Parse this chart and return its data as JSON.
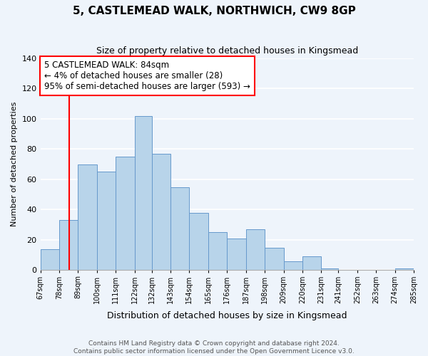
{
  "title": "5, CASTLEMEAD WALK, NORTHWICH, CW9 8GP",
  "subtitle": "Size of property relative to detached houses in Kingsmead",
  "xlabel": "Distribution of detached houses by size in Kingsmead",
  "ylabel": "Number of detached properties",
  "bin_labels": [
    "67sqm",
    "78sqm",
    "89sqm",
    "100sqm",
    "111sqm",
    "122sqm",
    "132sqm",
    "143sqm",
    "154sqm",
    "165sqm",
    "176sqm",
    "187sqm",
    "198sqm",
    "209sqm",
    "220sqm",
    "231sqm",
    "241sqm",
    "252sqm",
    "263sqm",
    "274sqm",
    "285sqm"
  ],
  "bin_edges": [
    67,
    78,
    89,
    100,
    111,
    122,
    132,
    143,
    154,
    165,
    176,
    187,
    198,
    209,
    220,
    231,
    241,
    252,
    263,
    274,
    285
  ],
  "bar_heights": [
    14,
    33,
    70,
    65,
    75,
    102,
    77,
    55,
    38,
    25,
    21,
    27,
    15,
    6,
    9,
    1,
    0,
    0,
    0,
    1
  ],
  "bar_color": "#b8d4ea",
  "bar_edge_color": "#6699cc",
  "ylim": [
    0,
    140
  ],
  "yticks": [
    0,
    20,
    40,
    60,
    80,
    100,
    120,
    140
  ],
  "red_line_x": 84,
  "annotation_title": "5 CASTLEMEAD WALK: 84sqm",
  "annotation_line1": "← 4% of detached houses are smaller (28)",
  "annotation_line2": "95% of semi-detached houses are larger (593) →",
  "footer_line1": "Contains HM Land Registry data © Crown copyright and database right 2024.",
  "footer_line2": "Contains public sector information licensed under the Open Government Licence v3.0.",
  "bg_color": "#eef4fb",
  "grid_color": "#ffffff"
}
